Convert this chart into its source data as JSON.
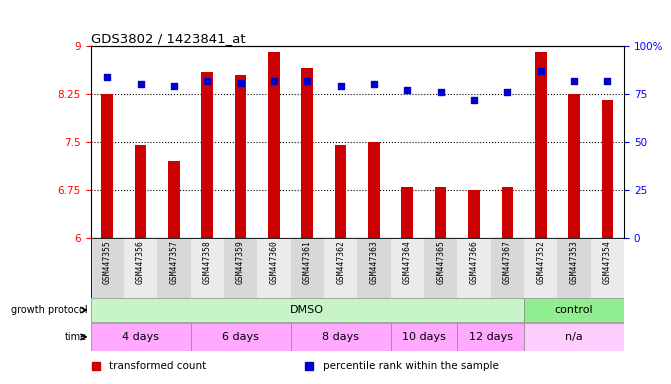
{
  "title": "GDS3802 / 1423841_at",
  "samples": [
    "GSM447355",
    "GSM447356",
    "GSM447357",
    "GSM447358",
    "GSM447359",
    "GSM447360",
    "GSM447361",
    "GSM447362",
    "GSM447363",
    "GSM447364",
    "GSM447365",
    "GSM447366",
    "GSM447367",
    "GSM447352",
    "GSM447353",
    "GSM447354"
  ],
  "transformed_count": [
    8.25,
    7.45,
    7.2,
    8.6,
    8.55,
    8.9,
    8.65,
    7.45,
    7.5,
    6.8,
    6.8,
    6.75,
    6.8,
    8.9,
    8.25,
    8.15
  ],
  "percentile_rank": [
    84,
    80,
    79,
    82,
    81,
    82,
    82,
    79,
    80,
    77,
    76,
    72,
    76,
    87,
    82,
    82
  ],
  "ylim_left": [
    6,
    9
  ],
  "ylim_right": [
    0,
    100
  ],
  "yticks_left": [
    6,
    6.75,
    7.5,
    8.25,
    9
  ],
  "yticks_right": [
    0,
    25,
    50,
    75,
    100
  ],
  "bar_color": "#cc0000",
  "dot_color": "#0000cc",
  "hline_vals": [
    6.75,
    7.5,
    8.25
  ],
  "growth_protocol_groups": [
    {
      "text": "DMSO",
      "start": 0,
      "end": 13,
      "color": "#c8f5c8"
    },
    {
      "text": "control",
      "start": 13,
      "end": 16,
      "color": "#90ee90"
    }
  ],
  "time_groups": [
    {
      "text": "4 days",
      "start": 0,
      "end": 3
    },
    {
      "text": "6 days",
      "start": 3,
      "end": 6
    },
    {
      "text": "8 days",
      "start": 6,
      "end": 9
    },
    {
      "text": "10 days",
      "start": 9,
      "end": 11
    },
    {
      "text": "12 days",
      "start": 11,
      "end": 13
    },
    {
      "text": "n/a",
      "start": 13,
      "end": 16
    }
  ],
  "time_color": "#ffaaff",
  "time_na_color": "#ffccff",
  "legend_items": [
    {
      "label": "transformed count",
      "color": "#cc0000"
    },
    {
      "label": "percentile rank within the sample",
      "color": "#0000cc"
    }
  ],
  "bg_color": "#ffffff",
  "label_bg_color": "#d8d8d8"
}
